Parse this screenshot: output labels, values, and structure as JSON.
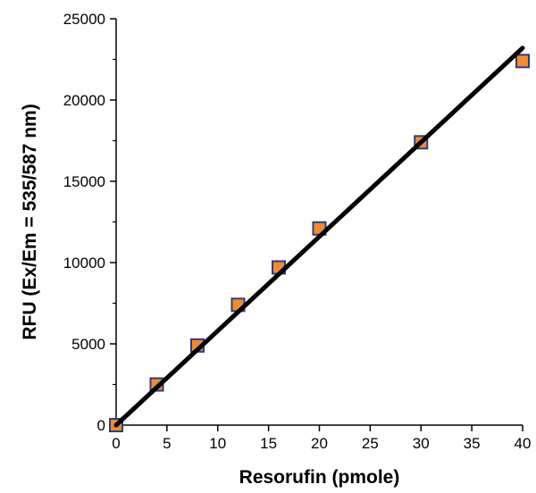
{
  "chart_data": {
    "type": "scatter",
    "title": "",
    "xlabel": "Resorufin (pmole)",
    "ylabel": "RFU (Ex/Em = 535/587 nm)",
    "xlim": [
      0,
      40
    ],
    "ylim": [
      0,
      25000
    ],
    "x_ticks": [
      0,
      5,
      10,
      15,
      20,
      25,
      30,
      35,
      40
    ],
    "y_ticks": [
      0,
      5000,
      10000,
      15000,
      20000,
      25000
    ],
    "x_tick_labels": [
      "0",
      "5",
      "10",
      "15",
      "20",
      "25",
      "30",
      "35",
      "40"
    ],
    "y_tick_labels": [
      "0",
      "5000",
      "10000",
      "15000",
      "20000",
      "25000"
    ],
    "grid": false,
    "legend": "none",
    "series": [
      {
        "x": [
          0,
          4,
          8,
          12,
          16,
          20,
          30,
          40
        ],
        "y": [
          0,
          2500,
          4900,
          7400,
          9700,
          12100,
          17400,
          22400
        ],
        "marker": "square",
        "color": "#F28C28",
        "edge_color": "#2E3A87"
      }
    ],
    "trendline": {
      "x": [
        0,
        40
      ],
      "y": [
        0,
        23200
      ],
      "color": "#000000"
    }
  }
}
